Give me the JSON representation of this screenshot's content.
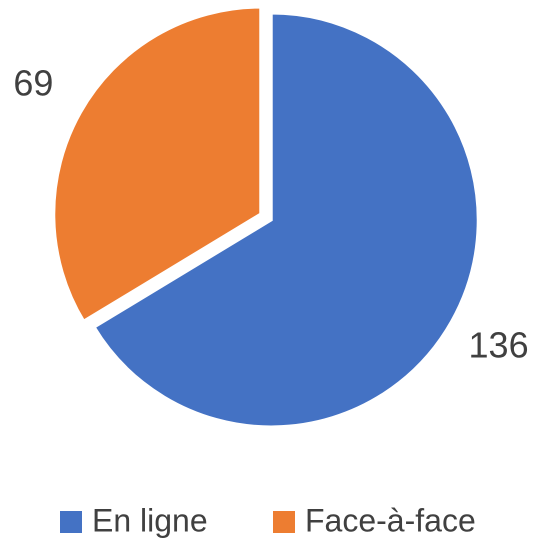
{
  "chart_data": {
    "type": "pie",
    "categories": [
      "En ligne",
      "Face-à-face"
    ],
    "values": [
      136,
      69
    ],
    "colors": [
      "#4472c4",
      "#ed7d31"
    ],
    "legend": "bottom"
  }
}
